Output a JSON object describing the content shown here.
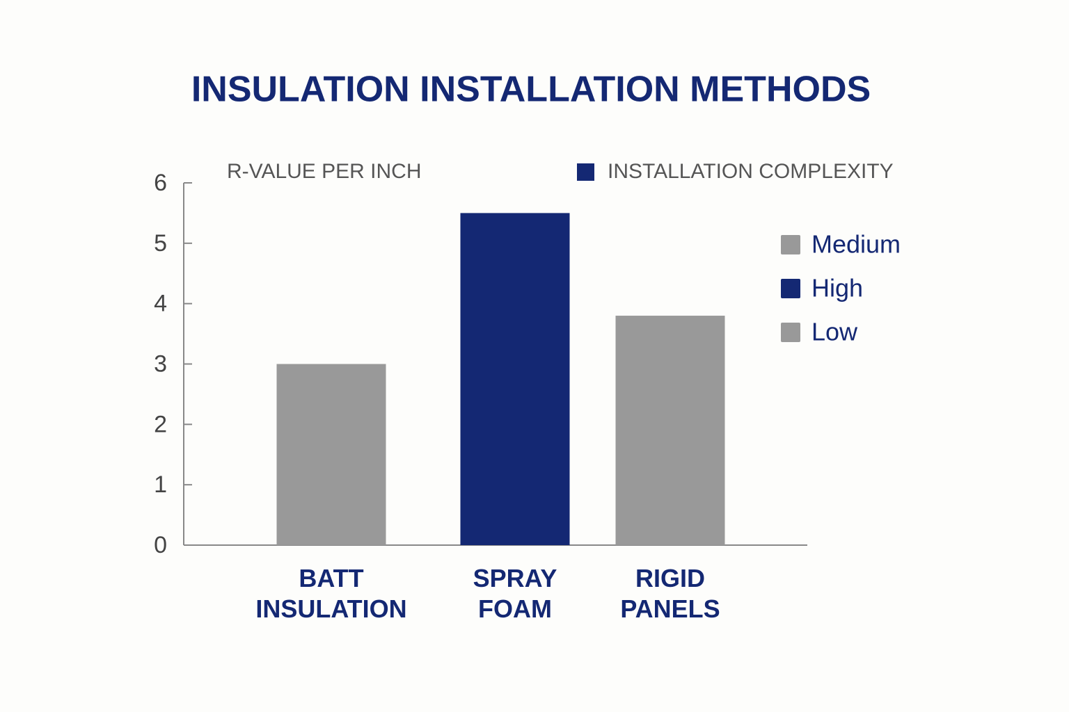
{
  "chart_data": {
    "type": "bar",
    "title": "INSULATION INSTALLATION METHODS",
    "y_label": "R-VALUE PER INCH",
    "categories": [
      "BATT INSULATION",
      "SPRAY FOAM",
      "RIGID PANELS"
    ],
    "values": [
      3.0,
      5.5,
      3.8
    ],
    "colors": [
      "#999999",
      "#142873",
      "#999999"
    ],
    "ylim": [
      0,
      6
    ],
    "yticks": [
      0,
      1,
      2,
      3,
      4,
      5,
      6
    ],
    "legend": {
      "title": "INSTALLATION COMPLEXITY",
      "title_color": "#142873",
      "items": [
        {
          "name": "Medium",
          "color": "#999999"
        },
        {
          "name": "High",
          "color": "#142873"
        },
        {
          "name": "Low",
          "color": "#999999"
        }
      ]
    }
  }
}
